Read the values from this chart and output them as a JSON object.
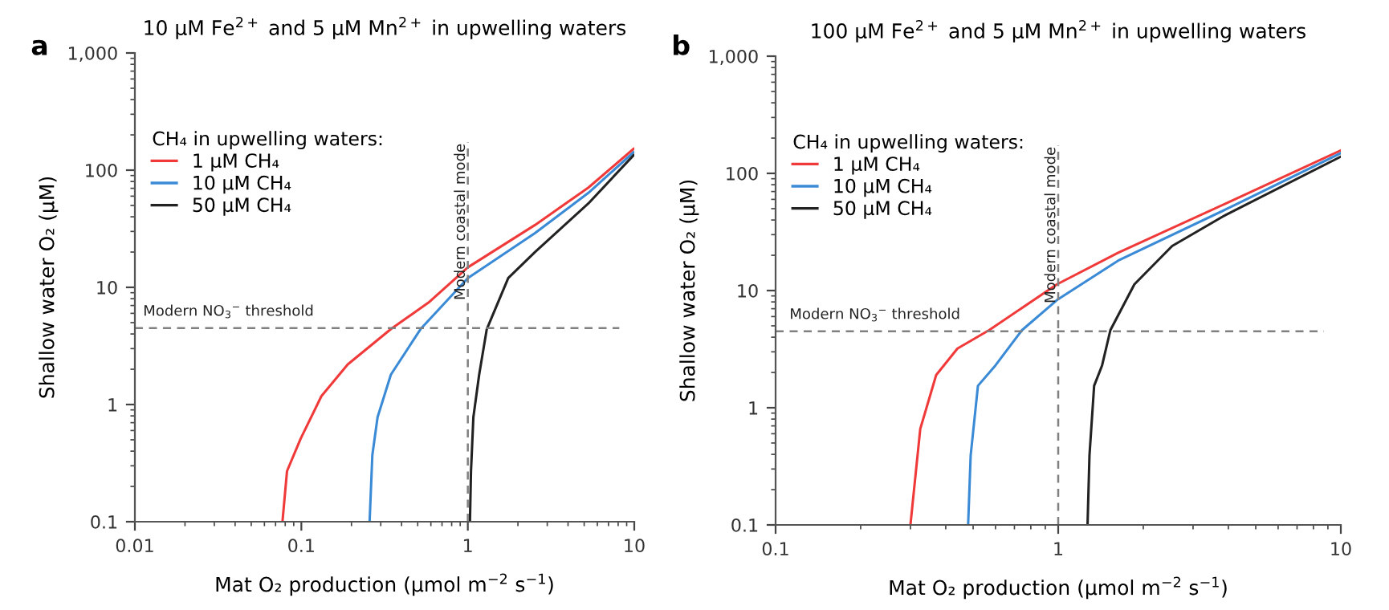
{
  "chart_data": [
    {
      "type": "line",
      "title": "10 µM Fe$^{2+}$ and 5 µM Mn$^{2+}$ in upwelling waters",
      "xlabel": "Mat O₂ production (µmol m$^{−2}$ s$^{−1}$)",
      "ylabel": "Shallow water O₂ (µM)",
      "legend_title": "CH₄ in upwelling waters:",
      "legend": "top left",
      "log": "xy",
      "annotations": [
        "a"
      ],
      "xlim": [
        0.01,
        10
      ],
      "xticks": [
        0.01,
        0.1,
        1,
        10
      ],
      "ylim": [
        0.1,
        1000
      ],
      "yticks": [
        0.1,
        1,
        10,
        100,
        {
          "value": 1000,
          "label": "1,000"
        }
      ],
      "ref_lines": [
        {
          "axis": "x",
          "value": 1,
          "label": "Modern coastal mode",
          "line_style": "dashed",
          "color": "#808080"
        },
        {
          "axis": "y",
          "value": 4.5,
          "label": "Modern NO$_{3}$$^{−}$ threshold",
          "line_style": "dashed",
          "color": "#808080"
        }
      ],
      "series": [
        {
          "name": "1 µM CH₄",
          "color": "#f03a3a",
          "x": [
            0.077,
            0.082,
            0.099,
            0.132,
            0.19,
            0.345,
            0.58,
            1.0,
            2.53,
            5.3,
            9.9
          ],
          "values": [
            0.1,
            0.27,
            0.51,
            1.18,
            2.2,
            4.4,
            7.4,
            14.8,
            34,
            71,
            152
          ]
        },
        {
          "name": "10 µM CH₄",
          "color": "#3a8ad6",
          "x": [
            0.257,
            0.267,
            0.287,
            0.345,
            0.52,
            1.0,
            2.53,
            5.3,
            9.9
          ],
          "values": [
            0.1,
            0.37,
            0.78,
            1.8,
            4.4,
            12,
            29,
            64,
            142
          ]
        },
        {
          "name": "50 µM CH₄",
          "color": "#222222",
          "x": [
            1.03,
            1.045,
            1.08,
            1.17,
            1.3,
            1.75,
            2.53,
            5.3,
            9.9
          ],
          "values": [
            0.1,
            0.27,
            0.78,
            1.8,
            4.4,
            12,
            20,
            52,
            134
          ]
        }
      ]
    },
    {
      "type": "line",
      "title": "100 µM Fe$^{2+}$ and 5 µM Mn$^{2+}$ in upwelling waters",
      "xlabel": "Mat O₂ production (µmol m$^{−2}$ s$^{−1}$)",
      "ylabel": "Shallow water O₂ (µM)",
      "legend_title": "CH₄ in upwelling waters:",
      "legend": "top left",
      "log": "xy",
      "annotations": [
        "b"
      ],
      "xlim": [
        0.1,
        10
      ],
      "xticks": [
        0.1,
        1,
        10
      ],
      "ylim": [
        0.1,
        1000
      ],
      "yticks": [
        0.1,
        1,
        10,
        100,
        {
          "value": 1000,
          "label": "1,000"
        }
      ],
      "ref_lines": [
        {
          "axis": "x",
          "value": 1,
          "label": "Modern coastal mode",
          "line_style": "dashed",
          "color": "#808080"
        },
        {
          "axis": "y",
          "value": 4.5,
          "label": "Modern NO$_{3}$$^{−}$ threshold",
          "line_style": "dashed",
          "color": "#808080"
        }
      ],
      "series": [
        {
          "name": "1 µM CH₄",
          "color": "#f03a3a",
          "x": [
            0.3,
            0.325,
            0.37,
            0.44,
            0.57,
            0.99,
            1.63,
            3.9,
            10
          ],
          "values": [
            0.1,
            0.66,
            1.9,
            3.2,
            4.6,
            11.3,
            21,
            55,
            157
          ]
        },
        {
          "name": "10 µM CH₄",
          "color": "#3a8ad6",
          "x": [
            0.48,
            0.49,
            0.52,
            0.6,
            0.745,
            0.99,
            1.63,
            3.9,
            10
          ],
          "values": [
            0.1,
            0.39,
            1.54,
            2.3,
            4.6,
            8.3,
            18,
            49,
            149
          ]
        },
        {
          "name": "50 µM CH₄",
          "color": "#222222",
          "x": [
            1.27,
            1.29,
            1.34,
            1.43,
            1.53,
            1.86,
            2.53,
            3.9,
            10
          ],
          "values": [
            0.1,
            0.39,
            1.54,
            2.3,
            4.6,
            11.3,
            24,
            44,
            139
          ]
        }
      ]
    }
  ]
}
